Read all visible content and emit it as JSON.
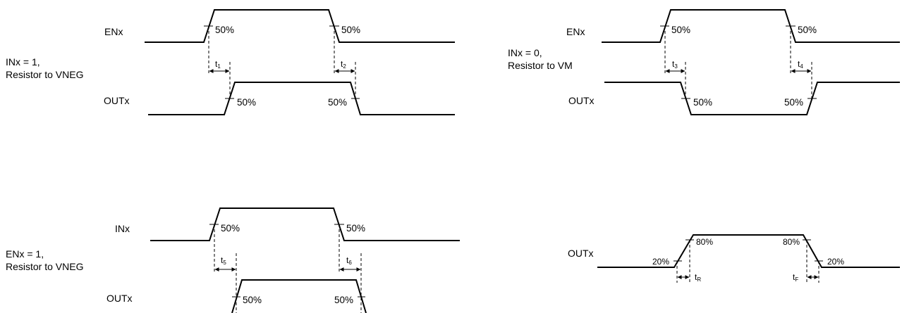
{
  "percent_50": "50%",
  "percent_20": "20%",
  "percent_80": "80%",
  "diagram_a": {
    "top_signal": "ENx",
    "condition_line1": "INx = 1,",
    "condition_line2": "Resistor to VNEG",
    "bottom_signal": "OUTx",
    "delay_rise": "t",
    "delay_rise_sub": "1",
    "delay_fall": "t",
    "delay_fall_sub": "2"
  },
  "diagram_b": {
    "top_signal": "ENx",
    "condition_line1": "INx = 0,",
    "condition_line2": "Resistor to VM",
    "bottom_signal": "OUTx",
    "delay_rise": "t",
    "delay_rise_sub": "3",
    "delay_fall": "t",
    "delay_fall_sub": "4"
  },
  "diagram_c": {
    "top_signal": "INx",
    "condition_line1": "ENx = 1,",
    "condition_line2": "Resistor to VNEG",
    "bottom_signal": "OUTx",
    "delay_rise": "t",
    "delay_rise_sub": "5",
    "delay_fall": "t",
    "delay_fall_sub": "6"
  },
  "diagram_d": {
    "signal": "OUTx",
    "rise_time": "t",
    "rise_time_sub": "R",
    "fall_time": "t",
    "fall_time_sub": "F"
  }
}
